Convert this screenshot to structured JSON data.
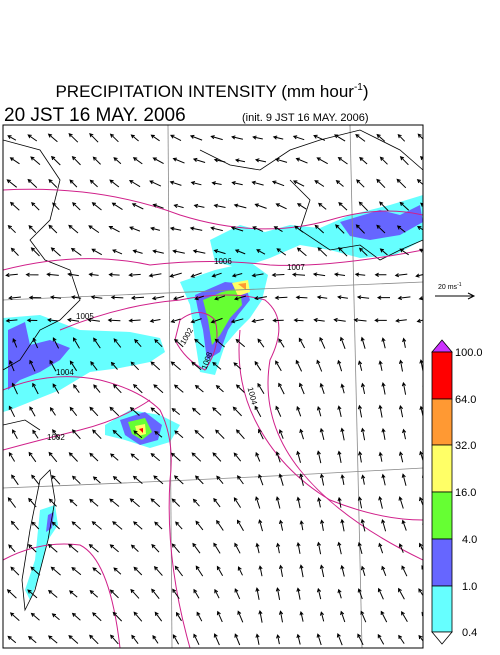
{
  "title": {
    "text": "PRECIPITATION INTENSITY (mm hour",
    "superscript": "-1",
    "closing": ")"
  },
  "valid_time": "20 JST 16 MAY. 2006",
  "init_time": "(init. 9 JST 16 MAY. 2006)",
  "wind_scale": {
    "text": "20 ms",
    "superscript": "-1"
  },
  "colorbar": {
    "labels": [
      "100.0",
      "64.0",
      "32.0",
      "16.0",
      "4.0",
      "1.0",
      "0.4"
    ]
  },
  "isobar_labels": [
    "1006",
    "1007",
    "1005",
    "1002",
    "1004",
    "1008",
    "1004",
    "1002"
  ]
}
